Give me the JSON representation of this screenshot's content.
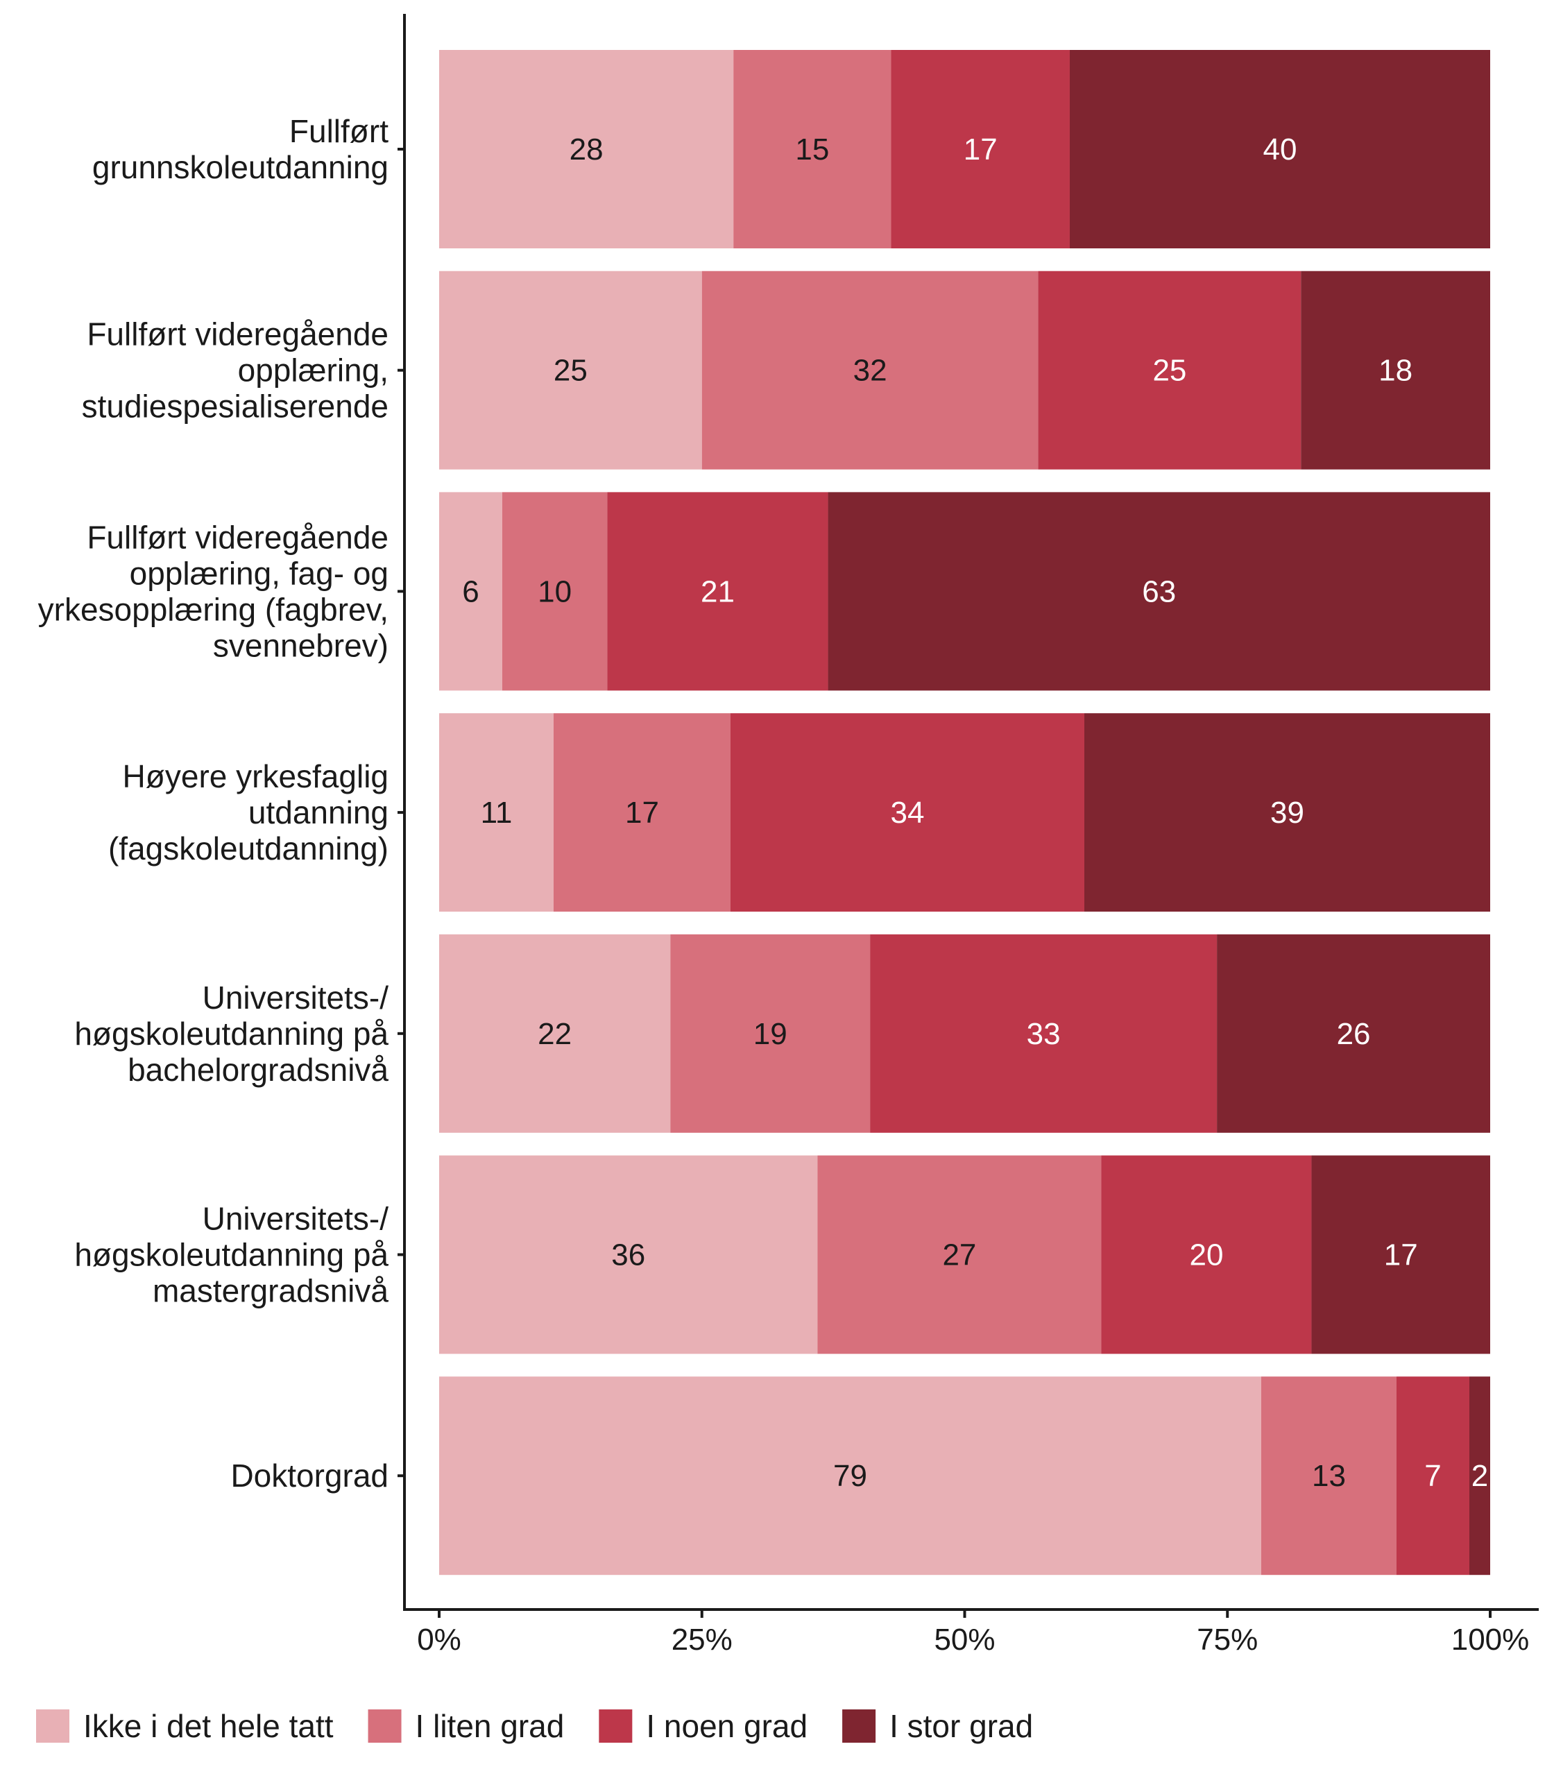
{
  "chart_data": {
    "type": "bar",
    "orientation": "horizontal",
    "stacked": "percent",
    "title": "",
    "xlabel": "",
    "ylabel": "",
    "xlim": [
      0,
      100
    ],
    "x_ticks": [
      "0%",
      "25%",
      "50%",
      "75%",
      "100%"
    ],
    "grid": false,
    "legend_position": "bottom",
    "categories": [
      [
        "Fullført",
        "grunnskoleutdanning"
      ],
      [
        "Fullført videregående",
        "opplæring,",
        "studiespesialiserende"
      ],
      [
        "Fullført videregående",
        "opplæring, fag- og",
        "yrkesopplæring (fagbrev,",
        "svennebrev)"
      ],
      [
        "Høyere yrkesfaglig",
        "utdanning",
        "(fagskoleutdanning)"
      ],
      [
        "Universitets-/",
        "høgskoleutdanning på",
        "bachelorgradsnivå"
      ],
      [
        "Universitets-/",
        "høgskoleutdanning på",
        "mastergradsnivå"
      ],
      [
        "Doktorgrad"
      ]
    ],
    "series": [
      {
        "name": "Ikke i det hele tatt",
        "color": "#e8b0b5",
        "label_color": "#1a1a1a",
        "values": [
          28,
          25,
          6,
          11,
          22,
          36,
          79
        ]
      },
      {
        "name": "I liten grad",
        "color": "#d7707c",
        "label_color": "#1a1a1a",
        "values": [
          15,
          32,
          10,
          17,
          19,
          27,
          13
        ]
      },
      {
        "name": "I noen grad",
        "color": "#bd374a",
        "label_color": "#ffffff",
        "values": [
          17,
          25,
          21,
          34,
          33,
          20,
          7
        ]
      },
      {
        "name": "I stor grad",
        "color": "#7f2530",
        "label_color": "#ffffff",
        "values": [
          40,
          18,
          63,
          39,
          26,
          17,
          2
        ]
      }
    ]
  }
}
